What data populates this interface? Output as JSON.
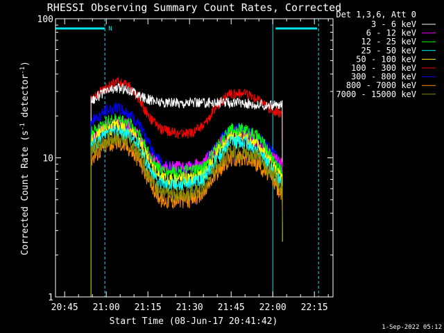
{
  "chart_data": {
    "type": "line",
    "title": "RHESSI Observing Summary Count Rates, Corrected",
    "xlabel": "Start Time (08-Jun-17 20:41:42)",
    "ylabel": "Corrected Count Rate (s⁻¹ detector⁻¹)",
    "ylabel_main": "Corrected Count Rate (s",
    "ylabel_sup1": "-1",
    "ylabel_mid": " detector",
    "ylabel_sup2": "-1",
    "ylabel_end": ")",
    "yscale": "log",
    "ylim": [
      1,
      100
    ],
    "xlim": [
      "20:41:42",
      "22:21:42"
    ],
    "x_ticks": [
      "20:45",
      "21:00",
      "21:15",
      "21:30",
      "21:45",
      "22:00",
      "22:15"
    ],
    "y_ticks": [
      "1",
      "10",
      "100"
    ],
    "legend_title": "Det 1,3,6, Att 0",
    "legend_position": "right",
    "timestamp": "1-Sep-2022 05:12",
    "flag_label": "N",
    "annotations": {
      "night_before_end": "20:59:30",
      "night_after_start": "22:01:00",
      "saa_lines": [
        "20:41:42",
        "22:00:00"
      ],
      "dashed_lines": [
        "20:59:30",
        "22:16:30"
      ],
      "data_start": "20:54:30",
      "data_end": "22:03:30"
    },
    "series": [
      {
        "name": "3 - 6 keV",
        "color": "#ffffff",
        "x": [
          "20:54:30",
          "21:00",
          "21:04",
          "21:08",
          "21:12",
          "21:16",
          "21:20",
          "21:25",
          "21:30",
          "21:35",
          "21:40",
          "21:45",
          "21:50",
          "21:55",
          "22:00",
          "22:03"
        ],
        "values": [
          26,
          30,
          32,
          31,
          28,
          26,
          25,
          25,
          25,
          25,
          25,
          25,
          25,
          24,
          24,
          24
        ]
      },
      {
        "name": "6 - 12 keV",
        "color": "#ff00ff",
        "x": [
          "20:54:30",
          "21:00",
          "21:04",
          "21:08",
          "21:12",
          "21:16",
          "21:20",
          "21:25",
          "21:30",
          "21:35",
          "21:40",
          "21:45",
          "21:50",
          "21:55",
          "22:00",
          "22:03"
        ],
        "values": [
          14,
          17,
          18,
          17,
          14,
          10,
          8.5,
          8.5,
          8.5,
          9,
          12,
          15,
          15,
          13,
          10,
          9
        ]
      },
      {
        "name": "12 - 25 keV",
        "color": "#00ff00",
        "x": [
          "20:54:30",
          "21:00",
          "21:04",
          "21:08",
          "21:12",
          "21:16",
          "21:20",
          "21:25",
          "21:30",
          "21:35",
          "21:40",
          "21:45",
          "21:50",
          "21:55",
          "22:00",
          "22:03"
        ],
        "values": [
          15,
          18,
          19,
          18,
          15,
          10,
          8,
          8,
          8,
          8.5,
          12,
          16,
          16,
          14,
          10,
          8
        ]
      },
      {
        "name": "25 - 50 keV",
        "color": "#00ffff",
        "x": [
          "20:54:30",
          "21:00",
          "21:04",
          "21:08",
          "21:12",
          "21:16",
          "21:20",
          "21:25",
          "21:30",
          "21:35",
          "21:40",
          "21:45",
          "21:50",
          "21:55",
          "22:00",
          "22:03"
        ],
        "values": [
          12,
          14.5,
          15.5,
          14.5,
          12,
          8,
          6.5,
          6.5,
          6.5,
          7,
          10,
          13,
          13,
          11,
          8,
          6.5
        ]
      },
      {
        "name": "50 - 100 keV",
        "color": "#ffff00",
        "x": [
          "20:54:30",
          "21:00",
          "21:04",
          "21:08",
          "21:12",
          "21:16",
          "21:20",
          "21:25",
          "21:30",
          "21:35",
          "21:40",
          "21:45",
          "21:50",
          "21:55",
          "22:00",
          "22:03"
        ],
        "values": [
          13,
          16,
          17,
          16,
          13,
          9,
          7,
          7,
          7,
          7.5,
          11,
          14,
          14,
          12,
          9,
          7
        ]
      },
      {
        "name": "100 - 300 keV",
        "color": "#ff0000",
        "x": [
          "20:54:30",
          "21:00",
          "21:04",
          "21:08",
          "21:12",
          "21:16",
          "21:20",
          "21:25",
          "21:30",
          "21:35",
          "21:40",
          "21:45",
          "21:50",
          "21:55",
          "22:00",
          "22:03"
        ],
        "values": [
          26,
          32,
          35,
          33,
          26,
          19,
          16,
          15,
          15,
          17,
          24,
          29,
          29,
          26,
          22,
          21
        ]
      },
      {
        "name": "300 - 800 keV",
        "color": "#0000ff",
        "x": [
          "20:54:30",
          "21:00",
          "21:04",
          "21:08",
          "21:12",
          "21:16",
          "21:20",
          "21:25",
          "21:30",
          "21:35",
          "21:40",
          "21:45",
          "21:50",
          "21:55",
          "22:00",
          "22:03"
        ],
        "values": [
          18,
          22,
          23,
          21,
          17,
          12,
          9,
          8.5,
          8.5,
          9,
          13,
          16,
          16,
          14,
          11,
          9
        ]
      },
      {
        "name": "800 - 7000 keV",
        "color": "#ff8c00",
        "x": [
          "20:54:30",
          "21:00",
          "21:04",
          "21:08",
          "21:12",
          "21:16",
          "21:20",
          "21:25",
          "21:30",
          "21:35",
          "21:40",
          "21:45",
          "21:50",
          "21:55",
          "22:00",
          "22:03"
        ],
        "values": [
          10,
          12.5,
          13,
          12,
          9.5,
          6.5,
          5,
          5,
          5,
          5.5,
          8,
          10,
          10,
          9,
          7,
          5.5
        ]
      },
      {
        "name": "7000 - 15000 keV",
        "color": "#8b8b00",
        "x": [
          "20:54:30",
          "21:00",
          "21:04",
          "21:08",
          "21:12",
          "21:16",
          "21:20",
          "21:25",
          "21:30",
          "21:35",
          "21:40",
          "21:45",
          "21:50",
          "21:55",
          "22:00",
          "22:03"
        ],
        "values": [
          11,
          13.5,
          14,
          13,
          10.5,
          7,
          5.5,
          5.5,
          5.5,
          6,
          9,
          11,
          11,
          10,
          7.5,
          6
        ]
      }
    ]
  }
}
